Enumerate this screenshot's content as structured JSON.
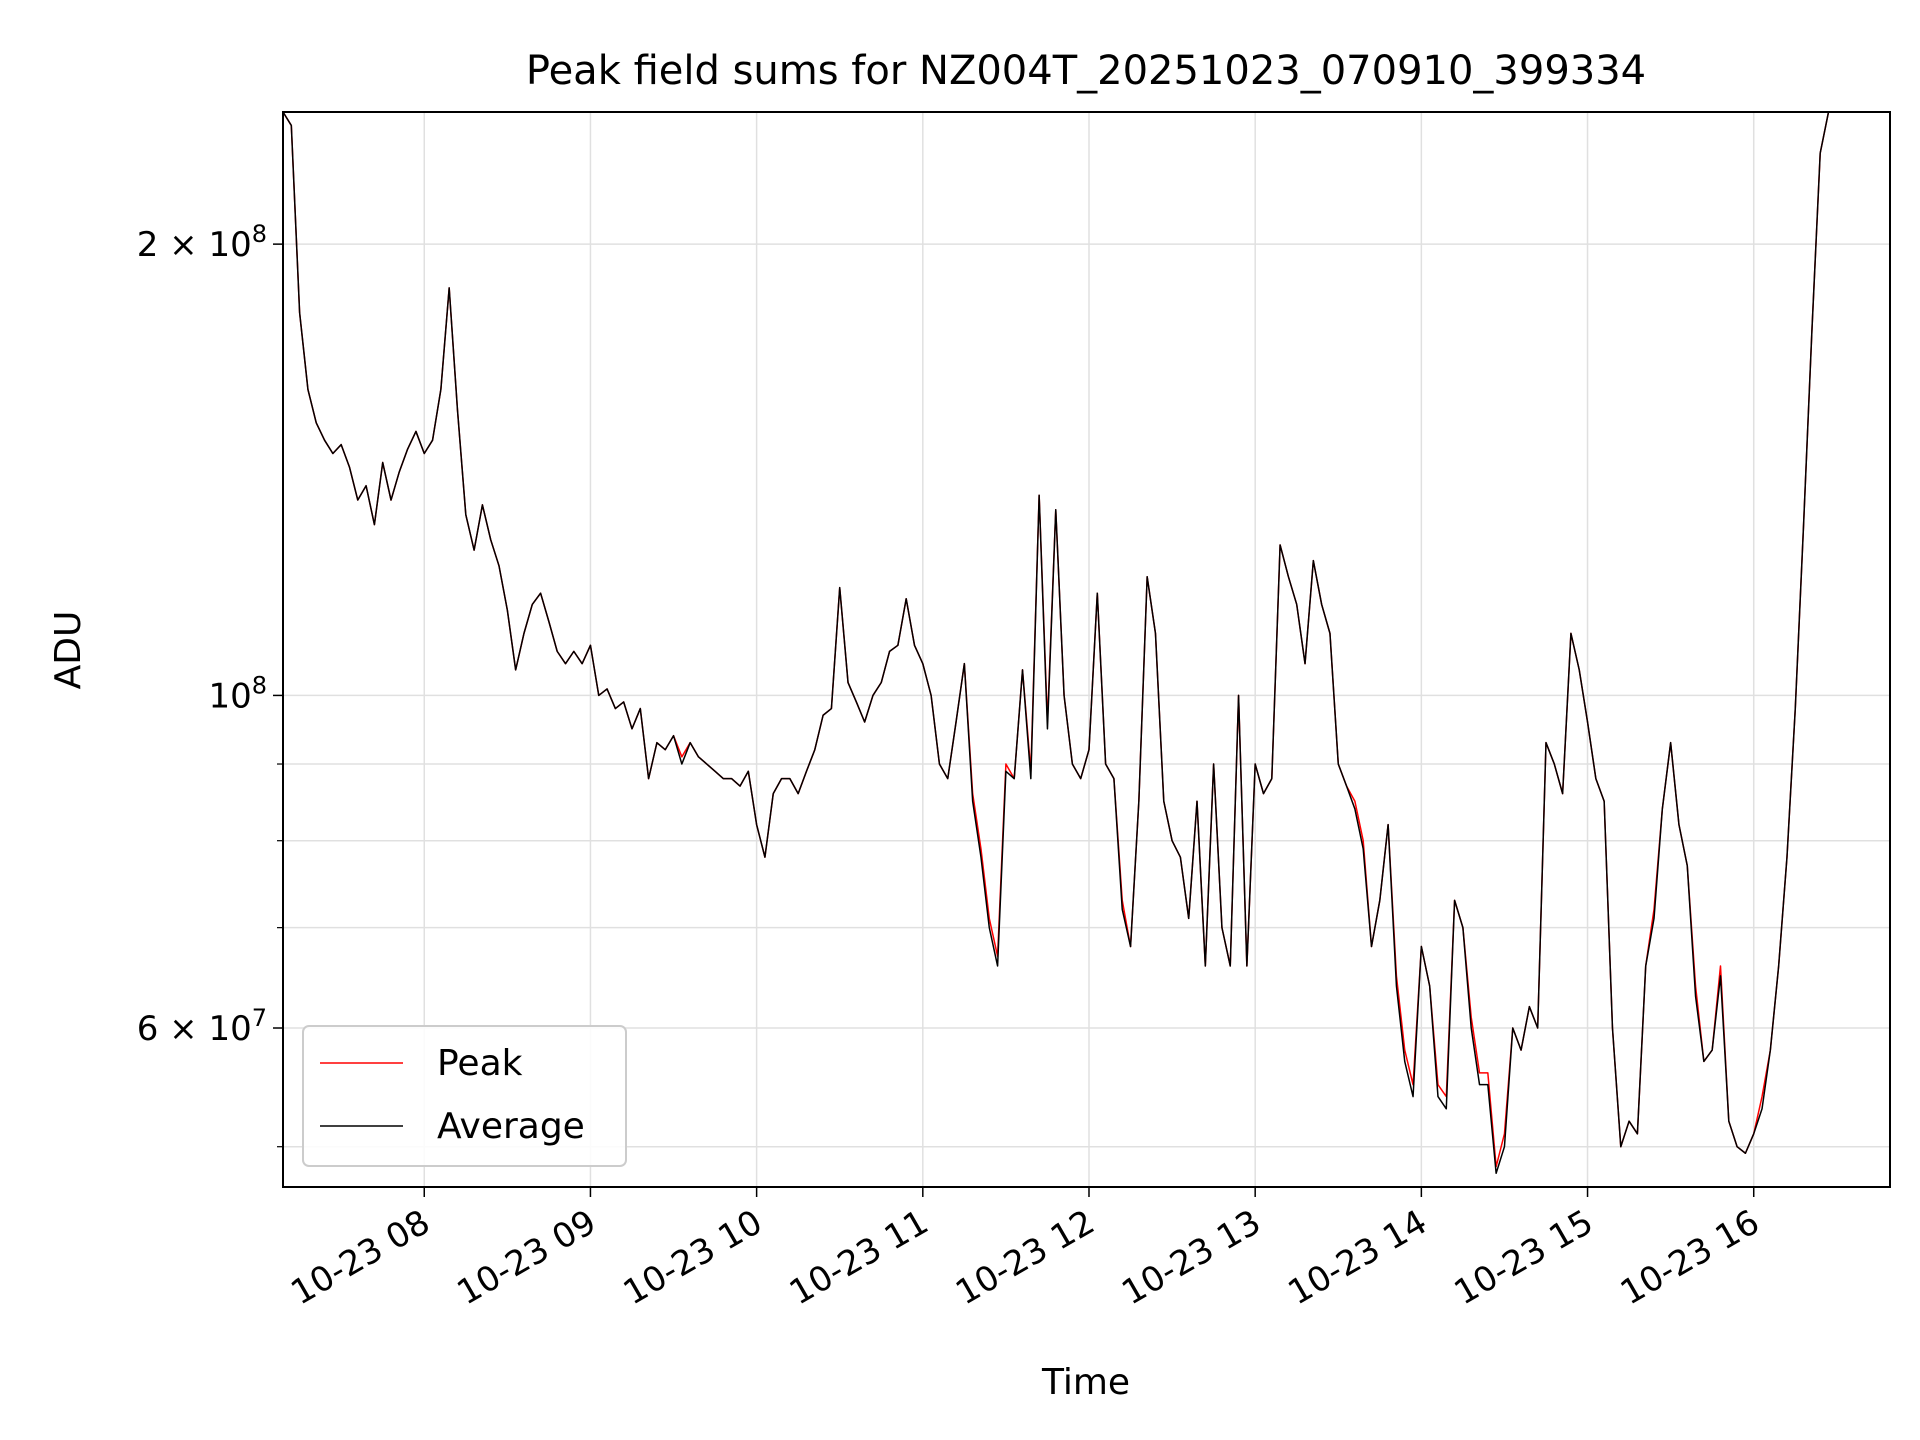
{
  "chart_data": {
    "type": "line",
    "title": "Peak field sums for NZ004T_20251023_070910_399334",
    "xlabel": "Time",
    "ylabel": "ADU",
    "x_unit": "hours (2025-10-23)",
    "xlim": [
      7.15,
      16.82
    ],
    "ylim": [
      47000000,
      245000000
    ],
    "yscale": "log",
    "grid": true,
    "legend_position": "lower left",
    "x_ticks": [
      {
        "value": 8,
        "label": "10-23 08"
      },
      {
        "value": 9,
        "label": "10-23 09"
      },
      {
        "value": 10,
        "label": "10-23 10"
      },
      {
        "value": 11,
        "label": "10-23 11"
      },
      {
        "value": 12,
        "label": "10-23 12"
      },
      {
        "value": 13,
        "label": "10-23 13"
      },
      {
        "value": 14,
        "label": "10-23 14"
      },
      {
        "value": 15,
        "label": "10-23 15"
      },
      {
        "value": 16,
        "label": "10-23 16"
      }
    ],
    "y_major_ticks": [
      {
        "value": 60000000,
        "mantissa": "6",
        "exponent": "7"
      },
      {
        "value": 100000000,
        "mantissa": "",
        "exponent": "8"
      },
      {
        "value": 200000000,
        "mantissa": "2",
        "exponent": "8"
      }
    ],
    "y_minor_ticks": [
      50000000,
      70000000,
      80000000,
      90000000
    ],
    "y_tick_times": "×",
    "y_tick_base": "10",
    "series": [
      {
        "name": "Peak",
        "color": "#ff0000"
      },
      {
        "name": "Average",
        "color": "#000000"
      }
    ],
    "x": [
      7.15,
      7.2,
      7.25,
      7.3,
      7.35,
      7.4,
      7.45,
      7.5,
      7.55,
      7.6,
      7.65,
      7.7,
      7.75,
      7.8,
      7.85,
      7.9,
      7.95,
      8.0,
      8.05,
      8.1,
      8.15,
      8.2,
      8.25,
      8.3,
      8.35,
      8.4,
      8.45,
      8.5,
      8.55,
      8.6,
      8.65,
      8.7,
      8.75,
      8.8,
      8.85,
      8.9,
      8.95,
      9.0,
      9.05,
      9.1,
      9.15,
      9.2,
      9.25,
      9.3,
      9.35,
      9.4,
      9.45,
      9.5,
      9.55,
      9.6,
      9.65,
      9.7,
      9.75,
      9.8,
      9.85,
      9.9,
      9.95,
      10.0,
      10.05,
      10.1,
      10.15,
      10.2,
      10.25,
      10.3,
      10.35,
      10.4,
      10.45,
      10.5,
      10.55,
      10.6,
      10.65,
      10.7,
      10.75,
      10.8,
      10.85,
      10.9,
      10.95,
      11.0,
      11.05,
      11.1,
      11.15,
      11.2,
      11.25,
      11.3,
      11.35,
      11.4,
      11.45,
      11.5,
      11.55,
      11.6,
      11.65,
      11.7,
      11.75,
      11.8,
      11.85,
      11.9,
      11.95,
      12.0,
      12.05,
      12.1,
      12.15,
      12.2,
      12.25,
      12.3,
      12.35,
      12.4,
      12.45,
      12.5,
      12.55,
      12.6,
      12.65,
      12.7,
      12.75,
      12.8,
      12.85,
      12.9,
      12.95,
      13.0,
      13.05,
      13.1,
      13.15,
      13.2,
      13.25,
      13.3,
      13.35,
      13.4,
      13.45,
      13.5,
      13.55,
      13.6,
      13.65,
      13.7,
      13.75,
      13.8,
      13.85,
      13.9,
      13.95,
      14.0,
      14.05,
      14.1,
      14.15,
      14.2,
      14.25,
      14.3,
      14.35,
      14.4,
      14.45,
      14.5,
      14.55,
      14.6,
      14.65,
      14.7,
      14.75,
      14.8,
      14.85,
      14.9,
      14.95,
      15.0,
      15.05,
      15.1,
      15.15,
      15.2,
      15.25,
      15.3,
      15.35,
      15.4,
      15.45,
      15.5,
      15.55,
      15.6,
      15.65,
      15.7,
      15.75,
      15.8,
      15.85,
      15.9,
      15.95,
      16.0,
      16.05,
      16.1,
      16.15,
      16.2,
      16.25,
      16.3,
      16.35,
      16.4,
      16.45,
      16.5,
      16.55,
      16.6,
      16.65,
      16.7,
      16.75,
      16.82
    ],
    "average": [
      245000000,
      240000000,
      180000000,
      160000000,
      152000000,
      148000000,
      145000000,
      147000000,
      142000000,
      135000000,
      138000000,
      130000000,
      143000000,
      135000000,
      141000000,
      146000000,
      150000000,
      145000000,
      148000000,
      160000000,
      187000000,
      155000000,
      132000000,
      125000000,
      134000000,
      127000000,
      122000000,
      114000000,
      104000000,
      110000000,
      115000000,
      117000000,
      112000000,
      107000000,
      105000000,
      107000000,
      105000000,
      108000000,
      100000000,
      101000000,
      98000000,
      99000000,
      95000000,
      98000000,
      88000000,
      93000000,
      92000000,
      94000000,
      90000000,
      93000000,
      91000000,
      90000000,
      89000000,
      88000000,
      88000000,
      87000000,
      89000000,
      82000000,
      78000000,
      86000000,
      88000000,
      88000000,
      86000000,
      89000000,
      92000000,
      97000000,
      98000000,
      118000000,
      102000000,
      99000000,
      96000000,
      100000000,
      102000000,
      107000000,
      108000000,
      116000000,
      108000000,
      105000000,
      100000000,
      90000000,
      88000000,
      96000000,
      105000000,
      85000000,
      78000000,
      70000000,
      66000000,
      89000000,
      88000000,
      104000000,
      88000000,
      136000000,
      95000000,
      133000000,
      100000000,
      90000000,
      88000000,
      92000000,
      117000000,
      90000000,
      88000000,
      72000000,
      68000000,
      85000000,
      120000000,
      110000000,
      85000000,
      80000000,
      78000000,
      71000000,
      85000000,
      66000000,
      90000000,
      70000000,
      66000000,
      100000000,
      66000000,
      90000000,
      86000000,
      88000000,
      126000000,
      120000000,
      115000000,
      105000000,
      123000000,
      115000000,
      110000000,
      90000000,
      87000000,
      84000000,
      79000000,
      68000000,
      73000000,
      82000000,
      64000000,
      57000000,
      54000000,
      68000000,
      64000000,
      54000000,
      53000000,
      73000000,
      70000000,
      60000000,
      55000000,
      55000000,
      48000000,
      50000000,
      60000000,
      58000000,
      62000000,
      60000000,
      93000000,
      90000000,
      86000000,
      110000000,
      104000000,
      96000000,
      88000000,
      85000000,
      60000000,
      50000000,
      52000000,
      51000000,
      66000000,
      71000000,
      84000000,
      93000000,
      82000000,
      77000000,
      63000000,
      57000000,
      58000000,
      65000000,
      52000000,
      50000000,
      49500000,
      51000000,
      53000000,
      58000000,
      66000000,
      78000000,
      98000000,
      130000000,
      175000000,
      230000000,
      245000000
    ],
    "peak": [
      245000000,
      240000000,
      180000000,
      160000000,
      152000000,
      148000000,
      145000000,
      147000000,
      142000000,
      135000000,
      138000000,
      130000000,
      143000000,
      135000000,
      141000000,
      146000000,
      150000000,
      145000000,
      148000000,
      160000000,
      187000000,
      155000000,
      132000000,
      125000000,
      134000000,
      127000000,
      122000000,
      114000000,
      104000000,
      110000000,
      115000000,
      117000000,
      112000000,
      107000000,
      105000000,
      107000000,
      105000000,
      108000000,
      100000000,
      101000000,
      98000000,
      99000000,
      95000000,
      98000000,
      88000000,
      93000000,
      92000000,
      94000000,
      91000000,
      93000000,
      91000000,
      90000000,
      89000000,
      88000000,
      88000000,
      87000000,
      89000000,
      82000000,
      78000000,
      86000000,
      88000000,
      88000000,
      86000000,
      89000000,
      92000000,
      97000000,
      98000000,
      118000000,
      102000000,
      99000000,
      96000000,
      100000000,
      102000000,
      107000000,
      108000000,
      116000000,
      108000000,
      105000000,
      100000000,
      90000000,
      88000000,
      96000000,
      105000000,
      86000000,
      79000000,
      71000000,
      67000000,
      90000000,
      88000000,
      104000000,
      89000000,
      136000000,
      96000000,
      133000000,
      100000000,
      90000000,
      88000000,
      92000000,
      117000000,
      90000000,
      88000000,
      73000000,
      68000000,
      85000000,
      120000000,
      110000000,
      85000000,
      80000000,
      78000000,
      71000000,
      85000000,
      66000000,
      90000000,
      70000000,
      66000000,
      100000000,
      66000000,
      90000000,
      86000000,
      88000000,
      126000000,
      120000000,
      115000000,
      105000000,
      123000000,
      115000000,
      110000000,
      90000000,
      87000000,
      85000000,
      80000000,
      68000000,
      73000000,
      82000000,
      65000000,
      58000000,
      55000000,
      68000000,
      64000000,
      55000000,
      54000000,
      73000000,
      70000000,
      61000000,
      56000000,
      56000000,
      48500000,
      51000000,
      60000000,
      58000000,
      62000000,
      60000000,
      93000000,
      90000000,
      86000000,
      110000000,
      104000000,
      96000000,
      88000000,
      85000000,
      60000000,
      50000000,
      52000000,
      51000000,
      66000000,
      72000000,
      84000000,
      93000000,
      82000000,
      77000000,
      64000000,
      57000000,
      58000000,
      66000000,
      52000000,
      50000000,
      49500000,
      51000000,
      54000000,
      58000000,
      66000000,
      78000000,
      98000000,
      130000000,
      175000000,
      230000000,
      245000000
    ]
  }
}
